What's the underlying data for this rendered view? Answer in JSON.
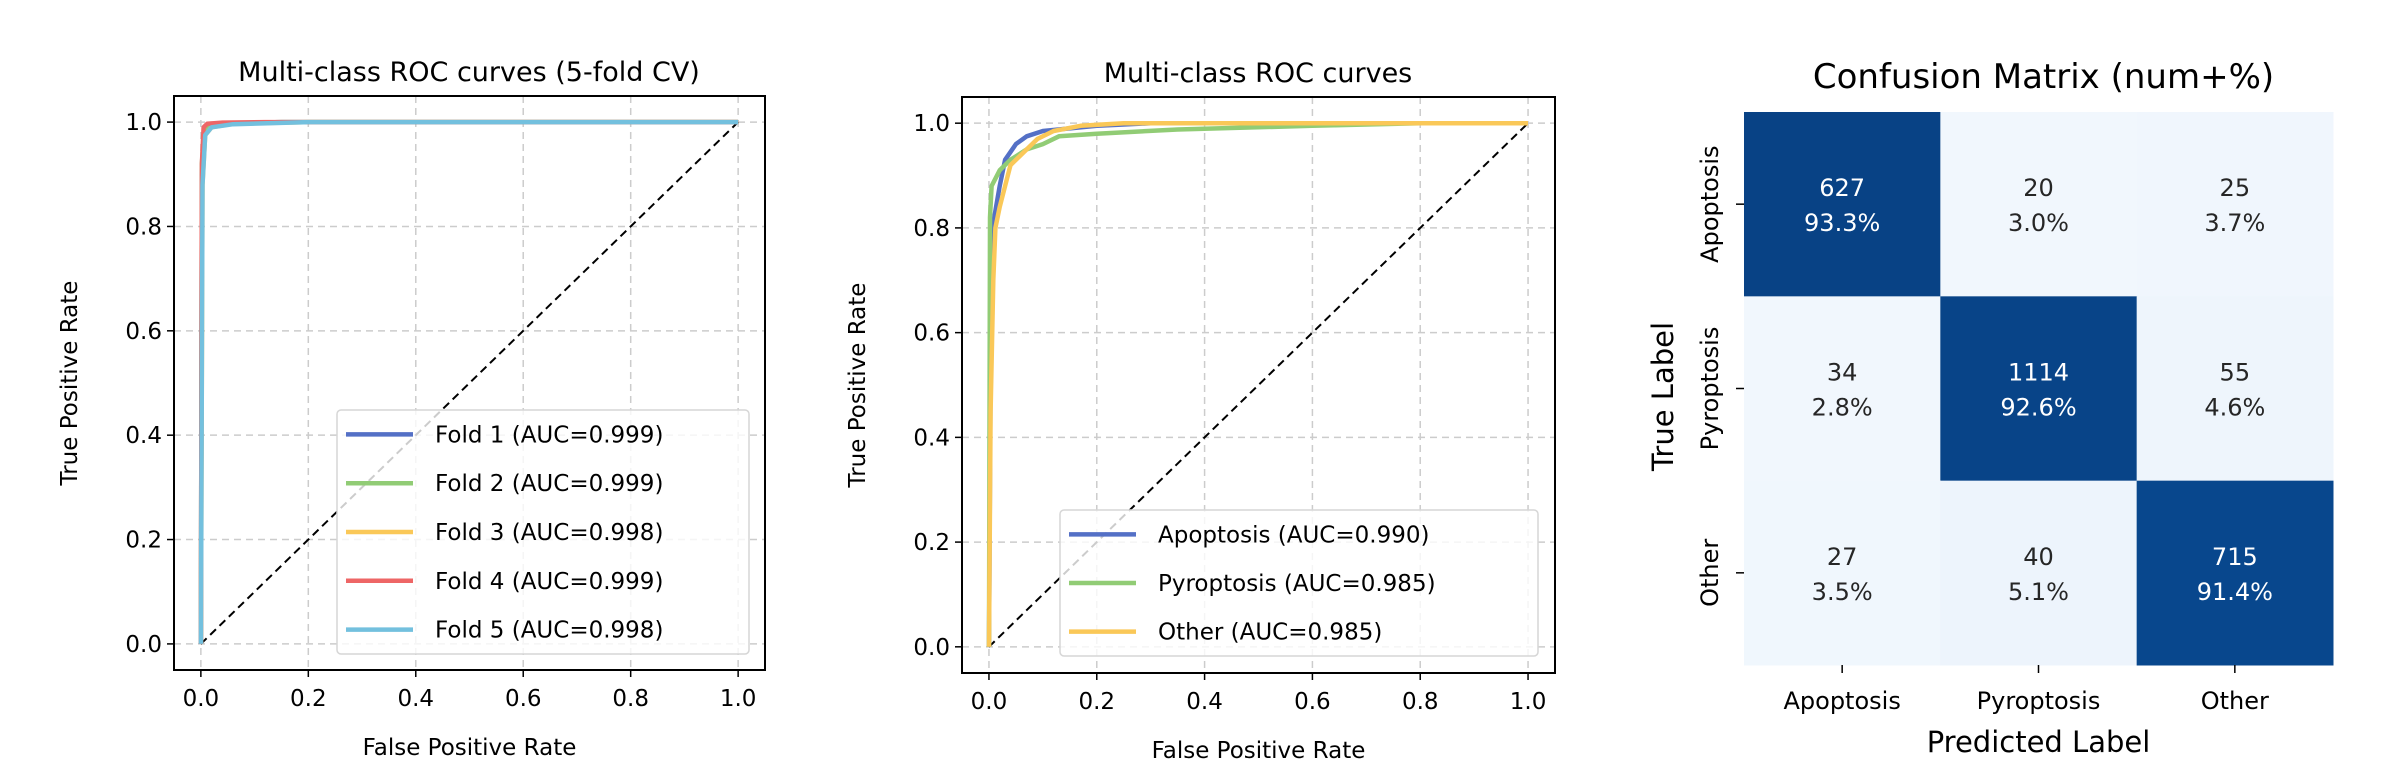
{
  "chart_data": [
    {
      "type": "line",
      "title": "Multi-class ROC curves (5-fold CV)",
      "xlabel": "False Positive Rate",
      "ylabel": "True Positive Rate",
      "xlim": [
        -0.05,
        1.05
      ],
      "ylim": [
        -0.05,
        1.05
      ],
      "xticks": [
        "0.0",
        "0.2",
        "0.4",
        "0.6",
        "0.8",
        "1.0"
      ],
      "yticks": [
        "0.0",
        "0.2",
        "0.4",
        "0.6",
        "0.8",
        "1.0"
      ],
      "grid": true,
      "legend_position": "bottom-right",
      "diagonal": true,
      "series": [
        {
          "name": "Fold 1 (AUC=0.999)",
          "color": "#5470c6",
          "x": [
            0,
            0.002,
            0.006,
            0.015,
            0.05,
            0.15,
            1
          ],
          "y": [
            0,
            0.9,
            0.98,
            0.995,
            0.998,
            1,
            1
          ]
        },
        {
          "name": "Fold 2 (AUC=0.999)",
          "color": "#91cc75",
          "x": [
            0,
            0.002,
            0.006,
            0.015,
            0.05,
            0.15,
            1
          ],
          "y": [
            0,
            0.92,
            0.985,
            0.995,
            0.998,
            1,
            1
          ]
        },
        {
          "name": "Fold 3 (AUC=0.998)",
          "color": "#fac858",
          "x": [
            0,
            0.003,
            0.008,
            0.02,
            0.06,
            0.2,
            1
          ],
          "y": [
            0,
            0.88,
            0.975,
            0.99,
            0.997,
            1,
            1
          ]
        },
        {
          "name": "Fold 4 (AUC=0.999)",
          "color": "#ee6666",
          "x": [
            0,
            0.002,
            0.005,
            0.012,
            0.04,
            0.12,
            1
          ],
          "y": [
            0,
            0.92,
            0.99,
            0.997,
            0.999,
            1,
            1
          ]
        },
        {
          "name": "Fold 5 (AUC=0.998)",
          "color": "#73c0de",
          "x": [
            0,
            0.003,
            0.008,
            0.02,
            0.06,
            0.2,
            1
          ],
          "y": [
            0,
            0.88,
            0.975,
            0.99,
            0.996,
            1,
            1
          ]
        }
      ]
    },
    {
      "type": "line",
      "title": "Multi-class ROC curves",
      "xlabel": "False Positive Rate",
      "ylabel": "True Positive Rate",
      "xlim": [
        -0.05,
        1.05
      ],
      "ylim": [
        -0.05,
        1.05
      ],
      "xticks": [
        "0.0",
        "0.2",
        "0.4",
        "0.6",
        "0.8",
        "1.0"
      ],
      "yticks": [
        "0.0",
        "0.2",
        "0.4",
        "0.6",
        "0.8",
        "1.0"
      ],
      "grid": true,
      "legend_position": "bottom-right",
      "diagonal": true,
      "series": [
        {
          "name": "Apoptosis (AUC=0.990)",
          "color": "#5470c6",
          "x": [
            0,
            0.004,
            0.01,
            0.02,
            0.03,
            0.05,
            0.07,
            0.1,
            0.15,
            0.2,
            0.3,
            1
          ],
          "y": [
            0,
            0.7,
            0.82,
            0.88,
            0.93,
            0.96,
            0.975,
            0.985,
            0.99,
            0.995,
            1,
            1
          ]
        },
        {
          "name": "Pyroptosis (AUC=0.985)",
          "color": "#91cc75",
          "x": [
            0,
            0.002,
            0.005,
            0.02,
            0.04,
            0.07,
            0.1,
            0.13,
            0.2,
            0.35,
            0.6,
            0.8,
            1
          ],
          "y": [
            0,
            0.82,
            0.88,
            0.91,
            0.93,
            0.95,
            0.96,
            0.975,
            0.98,
            0.988,
            0.995,
            1,
            1
          ]
        },
        {
          "name": "Other (AUC=0.985)",
          "color": "#fac858",
          "x": [
            0,
            0.003,
            0.008,
            0.012,
            0.02,
            0.03,
            0.04,
            0.06,
            0.09,
            0.12,
            0.17,
            0.25,
            1
          ],
          "y": [
            0,
            0.45,
            0.7,
            0.8,
            0.84,
            0.88,
            0.92,
            0.94,
            0.97,
            0.985,
            0.995,
            1,
            1
          ]
        }
      ]
    },
    {
      "type": "heatmap",
      "title": "Confusion Matrix (num+%)",
      "xlabel": "Predicted Label",
      "ylabel": "True Label",
      "x_categories": [
        "Apoptosis",
        "Pyroptosis",
        "Other"
      ],
      "y_categories": [
        "Apoptosis",
        "Pyroptosis",
        "Other"
      ],
      "values": [
        [
          627,
          20,
          25
        ],
        [
          34,
          1114,
          55
        ],
        [
          27,
          40,
          715
        ]
      ],
      "percent_labels": [
        [
          "93.3%",
          "3.0%",
          "3.7%"
        ],
        [
          "2.8%",
          "92.6%",
          "4.6%"
        ],
        [
          "3.5%",
          "5.1%",
          "91.4%"
        ]
      ],
      "colormap": "Blues"
    }
  ]
}
